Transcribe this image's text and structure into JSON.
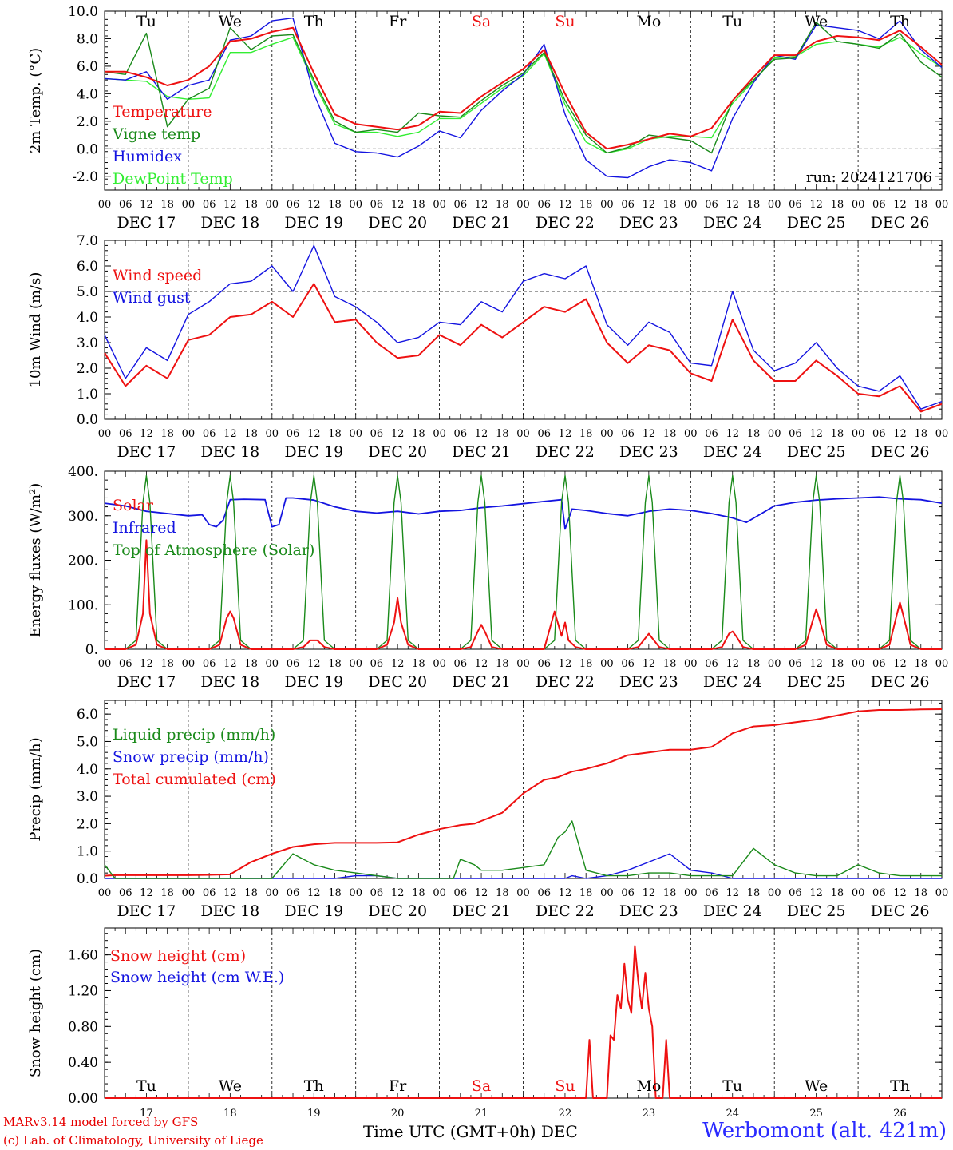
{
  "colors": {
    "red": "#ee1111",
    "green": "#1a8a1a",
    "blue": "#1414e0",
    "lightgreen": "#33ee33",
    "black": "#000000",
    "weekend": "#ee1111",
    "station": "#2a2aff"
  },
  "days_top": [
    "Tu",
    "We",
    "Th",
    "Fr",
    "Sa",
    "Su",
    "Mo",
    "Tu",
    "We",
    "Th"
  ],
  "days_bottom": [
    "Tu",
    "We",
    "Th",
    "Fr",
    "Sa",
    "Su",
    "Mo",
    "Tu",
    "We",
    "Th"
  ],
  "weekend_days": [
    "Sa",
    "Su"
  ],
  "date_labels": [
    "DEC 17",
    "DEC 18",
    "DEC 19",
    "DEC 20",
    "DEC 21",
    "DEC 22",
    "DEC 23",
    "DEC 24",
    "DEC 25",
    "DEC 26"
  ],
  "hour_ticks": [
    "00",
    "06",
    "12",
    "18"
  ],
  "day_numbers": [
    "17",
    "18",
    "19",
    "20",
    "21",
    "22",
    "23",
    "24",
    "25",
    "26"
  ],
  "footer": {
    "model": "MARv3.14 model forced by GFS",
    "lab": "(c) Lab. of Climatology, University of Liege",
    "time_title": "Time UTC (GMT+0h)",
    "month": "DEC",
    "station": "Werbomont (alt. 421m)"
  },
  "chart_data": [
    {
      "type": "line",
      "ylabel": "2m Temp. (°C)",
      "ylim": [
        -3,
        10
      ],
      "yticks": [
        "-2.0",
        "0.0",
        "2.0",
        "4.0",
        "6.0",
        "8.0",
        "10.0"
      ],
      "ytick_values": [
        -2,
        0,
        2,
        4,
        6,
        8,
        10
      ],
      "ref_line": 0,
      "annotation": "run: 2024121706",
      "x_hours": [
        0,
        6,
        12,
        18,
        24,
        30,
        36,
        42,
        48,
        54,
        60,
        66,
        72,
        78,
        84,
        90,
        96,
        102,
        108,
        114,
        120,
        126,
        132,
        138,
        144,
        150,
        156,
        162,
        168,
        174,
        180,
        186,
        192,
        198,
        204,
        210,
        216,
        222,
        228,
        234,
        240
      ],
      "series": [
        {
          "name": "Temperature",
          "color": "red",
          "values": [
            5.6,
            5.6,
            5.2,
            4.6,
            5.0,
            6.0,
            7.8,
            8.0,
            8.5,
            8.8,
            5.5,
            2.5,
            1.8,
            1.6,
            1.4,
            1.7,
            2.7,
            2.6,
            3.8,
            4.8,
            5.8,
            7.2,
            4.0,
            1.2,
            0.0,
            0.3,
            0.7,
            1.1,
            0.9,
            1.5,
            3.5,
            5.2,
            6.8,
            6.8,
            7.8,
            8.2,
            8.1,
            7.9,
            8.6,
            7.4,
            6.1
          ]
        },
        {
          "name": "Vigne temp",
          "color": "green",
          "values": [
            5.6,
            5.4,
            8.4,
            1.6,
            3.6,
            4.4,
            8.8,
            7.2,
            8.2,
            8.3,
            5.0,
            2.0,
            1.2,
            1.4,
            1.2,
            2.6,
            2.4,
            2.3,
            3.5,
            4.6,
            5.5,
            7.0,
            3.5,
            1.0,
            -0.3,
            0.1,
            1.0,
            0.8,
            0.6,
            -0.3,
            3.5,
            5.0,
            6.5,
            6.6,
            9.2,
            7.8,
            7.6,
            7.3,
            8.4,
            6.3,
            5.2
          ]
        },
        {
          "name": "Humidex",
          "color": "blue",
          "values": [
            5.1,
            5.0,
            5.6,
            3.6,
            4.6,
            5.0,
            7.9,
            8.2,
            9.3,
            9.5,
            4.0,
            0.4,
            -0.2,
            -0.3,
            -0.6,
            0.2,
            1.3,
            0.8,
            2.8,
            4.2,
            5.4,
            7.6,
            2.5,
            -0.8,
            -2.0,
            -2.1,
            -1.3,
            -0.8,
            -1.0,
            -1.6,
            2.2,
            4.8,
            6.8,
            6.5,
            9.0,
            8.8,
            8.6,
            8.0,
            9.3,
            7.2,
            5.9
          ]
        },
        {
          "name": "DewPoint Temp",
          "color": "lightgreen",
          "values": [
            5.1,
            5.0,
            4.9,
            3.8,
            3.6,
            3.7,
            7.0,
            7.0,
            7.6,
            8.1,
            4.8,
            1.8,
            1.2,
            1.2,
            0.9,
            1.2,
            2.2,
            2.2,
            3.3,
            4.4,
            5.3,
            6.9,
            3.2,
            0.5,
            -0.3,
            0.0,
            0.7,
            0.9,
            0.9,
            0.8,
            3.3,
            4.9,
            6.6,
            6.7,
            7.6,
            7.8,
            7.6,
            7.4,
            8.1,
            6.9,
            5.9
          ]
        }
      ],
      "legend_placement": "left"
    },
    {
      "type": "line",
      "ylabel": "10m Wind (m/s)",
      "ylim": [
        0,
        7
      ],
      "yticks": [
        "0.0",
        "1.0",
        "2.0",
        "3.0",
        "4.0",
        "5.0",
        "6.0",
        "7.0"
      ],
      "ytick_values": [
        0,
        1,
        2,
        3,
        4,
        5,
        6,
        7
      ],
      "ref_line": 5,
      "x_hours": [
        0,
        6,
        12,
        18,
        24,
        30,
        36,
        42,
        48,
        54,
        60,
        66,
        72,
        78,
        84,
        90,
        96,
        102,
        108,
        114,
        120,
        126,
        132,
        138,
        144,
        150,
        156,
        162,
        168,
        174,
        180,
        186,
        192,
        198,
        204,
        210,
        216,
        222,
        228,
        234,
        240
      ],
      "series": [
        {
          "name": "Wind speed",
          "color": "red",
          "values": [
            2.6,
            1.3,
            2.1,
            1.6,
            3.1,
            3.3,
            4.0,
            4.1,
            4.6,
            4.0,
            5.3,
            3.8,
            3.9,
            3.0,
            2.4,
            2.5,
            3.3,
            2.9,
            3.7,
            3.2,
            3.8,
            4.4,
            4.2,
            4.7,
            3.0,
            2.2,
            2.9,
            2.7,
            1.8,
            1.5,
            3.9,
            2.3,
            1.5,
            1.5,
            2.3,
            1.7,
            1.0,
            0.9,
            1.3,
            0.3,
            0.6
          ]
        },
        {
          "name": "Wind gust",
          "color": "blue",
          "values": [
            3.3,
            1.6,
            2.8,
            2.3,
            4.1,
            4.6,
            5.3,
            5.4,
            6.0,
            5.0,
            6.8,
            4.8,
            4.4,
            3.8,
            3.0,
            3.2,
            3.8,
            3.7,
            4.6,
            4.2,
            5.4,
            5.7,
            5.5,
            6.0,
            3.7,
            2.9,
            3.8,
            3.4,
            2.2,
            2.1,
            5.0,
            2.7,
            1.9,
            2.2,
            3.0,
            2.0,
            1.3,
            1.1,
            1.7,
            0.4,
            0.7
          ]
        }
      ],
      "legend_placement": "left"
    },
    {
      "type": "line",
      "ylabel": "Energy fluxes (W/m²)",
      "ylim": [
        0,
        400
      ],
      "yticks": [
        "0.",
        "100.",
        "200.",
        "300.",
        "400."
      ],
      "ytick_values": [
        0,
        100,
        200,
        300,
        400
      ],
      "x_hours": [
        0,
        6,
        9,
        11,
        12,
        13,
        15,
        18,
        24,
        30,
        33,
        35,
        36,
        37,
        39,
        42,
        48,
        54,
        57,
        59,
        60,
        61,
        63,
        66,
        72,
        78,
        81,
        83,
        84,
        85,
        87,
        90,
        96,
        102,
        105,
        107,
        108,
        109,
        111,
        114,
        120,
        126,
        129,
        131,
        132,
        133,
        135,
        138,
        144,
        150,
        153,
        155,
        156,
        157,
        159,
        162,
        168,
        174,
        177,
        179,
        180,
        181,
        183,
        186,
        192,
        198,
        201,
        203,
        204,
        205,
        207,
        210,
        216,
        222,
        225,
        227,
        228,
        229,
        231,
        234,
        240
      ],
      "series": [
        {
          "name": "Solar",
          "color": "red",
          "values": [
            0,
            0,
            10,
            80,
            245,
            80,
            10,
            0,
            0,
            0,
            10,
            70,
            85,
            70,
            10,
            0,
            0,
            0,
            5,
            20,
            20,
            20,
            5,
            0,
            0,
            0,
            10,
            60,
            115,
            60,
            10,
            0,
            0,
            0,
            5,
            40,
            55,
            40,
            5,
            0,
            0,
            0,
            85,
            30,
            60,
            20,
            5,
            0,
            0,
            0,
            5,
            25,
            35,
            25,
            5,
            0,
            0,
            0,
            5,
            35,
            40,
            30,
            5,
            0,
            0,
            0,
            10,
            65,
            90,
            65,
            10,
            0,
            0,
            0,
            10,
            75,
            105,
            75,
            10,
            0,
            0
          ]
        },
        {
          "name": "Top of Atmosphere (Solar)",
          "color": "green",
          "values": [
            0,
            0,
            20,
            330,
            390,
            330,
            20,
            0,
            0,
            0,
            20,
            330,
            390,
            330,
            20,
            0,
            0,
            0,
            20,
            330,
            390,
            330,
            20,
            0,
            0,
            0,
            20,
            330,
            390,
            330,
            20,
            0,
            0,
            0,
            20,
            330,
            390,
            330,
            20,
            0,
            0,
            0,
            20,
            330,
            390,
            330,
            20,
            0,
            0,
            0,
            20,
            330,
            390,
            330,
            20,
            0,
            0,
            0,
            20,
            330,
            390,
            330,
            20,
            0,
            0,
            0,
            20,
            330,
            390,
            330,
            20,
            0,
            0,
            0,
            20,
            330,
            390,
            330,
            20,
            0,
            0
          ]
        }
      ],
      "infrared": {
        "name": "Infrared",
        "color": "blue",
        "x_hours": [
          0,
          6,
          12,
          18,
          24,
          28,
          30,
          32,
          34,
          36,
          40,
          46,
          48,
          50,
          52,
          54,
          60,
          66,
          72,
          78,
          84,
          90,
          96,
          102,
          108,
          114,
          120,
          126,
          131,
          132,
          134,
          138,
          144,
          150,
          156,
          162,
          168,
          174,
          180,
          184,
          192,
          198,
          204,
          210,
          216,
          222,
          228,
          234,
          240
        ],
        "values": [
          328,
          322,
          310,
          305,
          300,
          302,
          280,
          275,
          290,
          336,
          337,
          336,
          275,
          280,
          340,
          340,
          335,
          320,
          310,
          306,
          310,
          304,
          310,
          312,
          318,
          322,
          327,
          332,
          336,
          270,
          315,
          312,
          305,
          300,
          310,
          315,
          312,
          305,
          295,
          285,
          322,
          330,
          335,
          338,
          340,
          342,
          338,
          336,
          328
        ]
      },
      "legend_placement": "left"
    },
    {
      "type": "line",
      "ylabel": "Precip (mm/h)",
      "ylim": [
        0,
        6.5
      ],
      "yticks": [
        "0.0",
        "1.0",
        "2.0",
        "3.0",
        "4.0",
        "5.0",
        "6.0"
      ],
      "ytick_values": [
        0,
        1,
        2,
        3,
        4,
        5,
        6
      ],
      "x_hours": [
        0,
        3,
        6,
        12,
        18,
        24,
        30,
        36,
        42,
        48,
        54,
        60,
        66,
        72,
        78,
        84,
        90,
        96,
        100,
        102,
        106,
        108,
        114,
        120,
        126,
        130,
        132,
        134,
        138,
        144,
        150,
        156,
        162,
        168,
        174,
        180,
        186,
        192,
        198,
        204,
        210,
        216,
        222,
        228,
        234,
        240
      ],
      "series": [
        {
          "name": "Liquid precip (mm/h)",
          "color": "green",
          "values": [
            0.5,
            0.0,
            0.0,
            0.0,
            0.0,
            0.0,
            0.0,
            0.0,
            0.0,
            0.0,
            0.9,
            0.5,
            0.3,
            0.2,
            0.1,
            0.0,
            0.0,
            0.0,
            0.0,
            0.7,
            0.5,
            0.3,
            0.3,
            0.4,
            0.5,
            1.5,
            1.7,
            2.1,
            0.3,
            0.1,
            0.1,
            0.2,
            0.2,
            0.1,
            0.1,
            0.1,
            1.1,
            0.5,
            0.2,
            0.1,
            0.1,
            0.5,
            0.2,
            0.1,
            0.1,
            0.1
          ]
        },
        {
          "name": "Snow precip (mm/h)",
          "color": "blue",
          "values": [
            0.0,
            0.0,
            0.0,
            0.0,
            0.0,
            0.0,
            0.0,
            0.0,
            0.0,
            0.0,
            0.0,
            0.0,
            0.0,
            0.1,
            0.1,
            0.0,
            0.0,
            0.0,
            0.0,
            0.0,
            0.0,
            0.0,
            0.0,
            0.0,
            0.0,
            0.0,
            0.0,
            0.1,
            0.0,
            0.1,
            0.3,
            0.6,
            0.9,
            0.3,
            0.2,
            0.0,
            0.0,
            0.0,
            0.0,
            0.0,
            0.0,
            0.0,
            0.0,
            0.0,
            0.0,
            0.0
          ]
        },
        {
          "name": "Total cumulated (cm)",
          "color": "red",
          "values": [
            0.1,
            0.12,
            0.12,
            0.12,
            0.12,
            0.12,
            0.13,
            0.15,
            0.6,
            0.9,
            1.15,
            1.25,
            1.3,
            1.3,
            1.3,
            1.32,
            1.6,
            1.8,
            1.9,
            1.95,
            2.0,
            2.1,
            2.4,
            3.1,
            3.6,
            3.7,
            3.8,
            3.9,
            4.0,
            4.2,
            4.5,
            4.6,
            4.7,
            4.7,
            4.8,
            5.3,
            5.55,
            5.6,
            5.7,
            5.8,
            5.95,
            6.1,
            6.15,
            6.15,
            6.17,
            6.18
          ]
        }
      ],
      "legend_placement": "left"
    },
    {
      "type": "line",
      "ylabel": "Snow height (cm)",
      "ylim": [
        0,
        1.9
      ],
      "yticks": [
        "0.00",
        "0.40",
        "0.80",
        "1.20",
        "1.60"
      ],
      "ytick_values": [
        0,
        0.4,
        0.8,
        1.2,
        1.6
      ],
      "x_hours": [
        0,
        138,
        139,
        140,
        141,
        142,
        143,
        144,
        145,
        146,
        147,
        148,
        149,
        150,
        151,
        152,
        153,
        154,
        155,
        156,
        157,
        158,
        159,
        160,
        161,
        162,
        163,
        164,
        165,
        166,
        167,
        240
      ],
      "series": [
        {
          "name": "Snow height (cm)",
          "color": "red",
          "values": [
            0,
            0,
            0.65,
            0,
            0,
            0,
            0,
            0,
            0.7,
            0.65,
            1.15,
            1.0,
            1.5,
            1.1,
            0.95,
            1.7,
            1.3,
            1.0,
            1.4,
            1.0,
            0.8,
            0,
            0,
            0,
            0.65,
            0,
            0,
            0,
            0,
            0,
            0,
            0
          ]
        },
        {
          "name": "Snow height (cm W.E.)",
          "color": "blue",
          "values": []
        }
      ],
      "legend_placement": "left"
    }
  ]
}
